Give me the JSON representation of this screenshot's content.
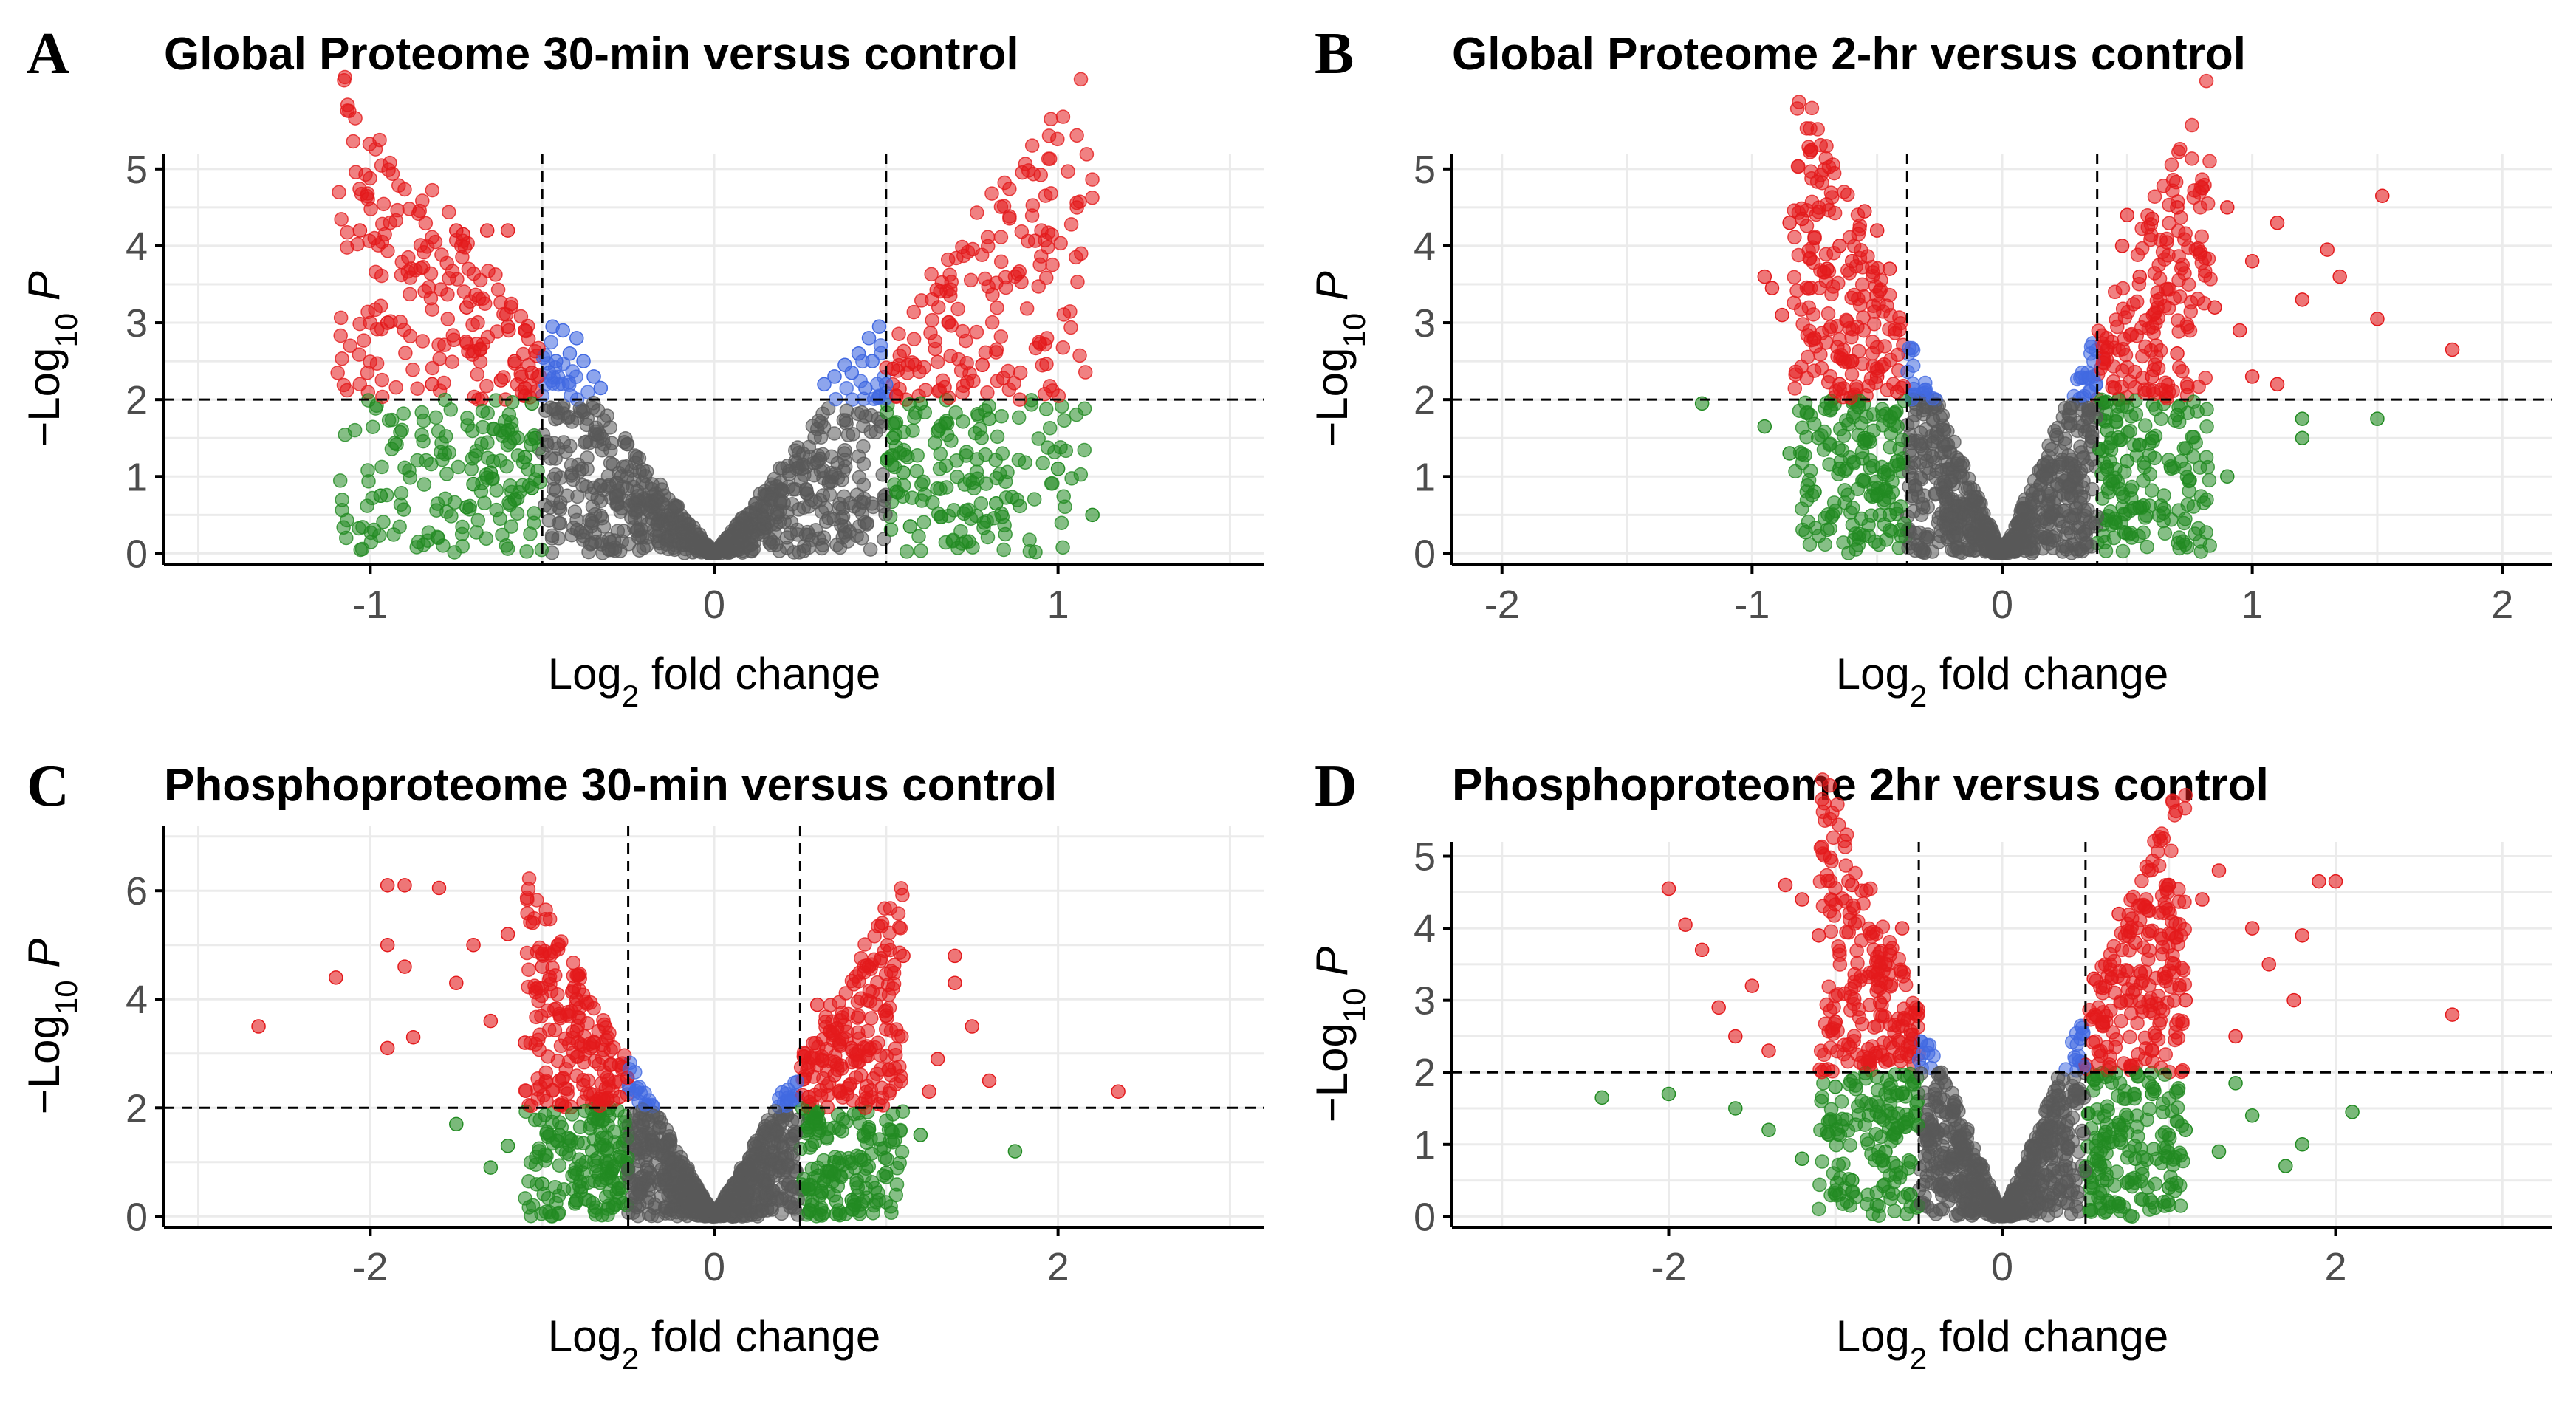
{
  "figure": {
    "colors": {
      "ns": "#595959",
      "fc_only": "#228B22",
      "p_only": "#4169E1",
      "both": "#E31A1C",
      "grid": "#EBEBEB",
      "axis": "#000000",
      "tick_text": "#4D4D4D"
    }
  },
  "chart_data": [
    {
      "id": "A",
      "letter": "A",
      "type": "scatter",
      "title": "Global Proteome 30-min versus control",
      "xlabel": "Log2 fold change",
      "ylabel": "−Log10 P",
      "xlim": [
        -1.6,
        1.6
      ],
      "ylim": [
        -0.15,
        5.2
      ],
      "xticks": [
        -1,
        0,
        1
      ],
      "xtick_labels": [
        "-1",
        "0",
        "1"
      ],
      "yticks": [
        0,
        1,
        2,
        3,
        4,
        5
      ],
      "ytick_labels": [
        "0",
        "1",
        "2",
        "3",
        "4",
        "5"
      ],
      "fc_cutoff": 0.5,
      "p_cutoff": 2,
      "points": [
        [
          -1.03,
          4.2
        ],
        [
          -0.75,
          4.2
        ],
        [
          -0.73,
          4.15
        ],
        [
          -0.66,
          4.2
        ],
        [
          -0.6,
          4.2
        ],
        [
          -0.95,
          3.0
        ],
        [
          -0.72,
          3.2
        ],
        [
          -0.6,
          2.95
        ],
        [
          -0.55,
          2.9
        ],
        [
          -0.68,
          2.65
        ],
        [
          -0.58,
          2.5
        ],
        [
          -0.53,
          2.35
        ],
        [
          -0.82,
          2.2
        ],
        [
          -0.62,
          2.25
        ],
        [
          -0.55,
          2.15
        ],
        [
          0.78,
          2.45
        ],
        [
          0.52,
          2.4
        ],
        [
          0.5,
          2.2
        ],
        [
          0.53,
          2.05
        ],
        [
          -0.47,
          2.95
        ],
        [
          -0.44,
          2.9
        ],
        [
          -0.42,
          2.6
        ],
        [
          -0.38,
          2.5
        ],
        [
          -0.35,
          2.3
        ],
        [
          -0.46,
          2.5
        ],
        [
          -0.4,
          2.8
        ],
        [
          -0.33,
          2.15
        ],
        [
          -0.48,
          2.35
        ],
        [
          0.48,
          2.95
        ],
        [
          0.45,
          2.8
        ],
        [
          0.42,
          2.6
        ],
        [
          0.38,
          2.45
        ],
        [
          0.35,
          2.3
        ],
        [
          0.32,
          2.2
        ],
        [
          0.46,
          2.5
        ],
        [
          0.4,
          2.35
        ],
        [
          0.44,
          2.15
        ],
        [
          -0.97,
          0.75
        ],
        [
          -0.7,
          0.9
        ],
        [
          -0.65,
          1.05
        ],
        [
          -0.72,
          0.6
        ],
        [
          -0.53,
          0.85
        ],
        [
          -0.58,
          0.7
        ],
        [
          -0.55,
          1.25
        ],
        [
          -0.52,
          1.5
        ],
        [
          -0.6,
          1.6
        ],
        [
          -0.53,
          1.95
        ],
        [
          1.1,
          0.5
        ],
        [
          1.0,
          1.1
        ],
        [
          0.82,
          0.65
        ],
        [
          0.8,
          1.75
        ],
        [
          0.6,
          1.95
        ],
        [
          0.55,
          1.05
        ],
        [
          0.57,
          0.35
        ],
        [
          0.52,
          1.5
        ],
        [
          0.53,
          0.8
        ]
      ]
    },
    {
      "id": "B",
      "letter": "B",
      "type": "scatter",
      "title": "Global Proteome 2-hr versus control",
      "xlabel": "Log2 fold change",
      "ylabel": "−Log10 P",
      "xlim": [
        -2.2,
        2.2
      ],
      "ylim": [
        -0.15,
        5.2
      ],
      "xticks": [
        -2,
        -1,
        0,
        1,
        2
      ],
      "xtick_labels": [
        "-2",
        "-1",
        "0",
        "1",
        "2"
      ],
      "yticks": [
        0,
        1,
        2,
        3,
        4,
        5
      ],
      "ytick_labels": [
        "0",
        "1",
        "2",
        "3",
        "4",
        "5"
      ],
      "fc_cutoff": 0.38,
      "p_cutoff": 2,
      "points": [
        [
          -0.85,
          4.3
        ],
        [
          -0.8,
          4.35
        ],
        [
          -0.75,
          4.1
        ],
        [
          -0.65,
          4.0
        ],
        [
          -0.55,
          4.45
        ],
        [
          -0.5,
          4.2
        ],
        [
          -0.95,
          3.6
        ],
        [
          -0.92,
          3.45
        ],
        [
          -0.7,
          3.7
        ],
        [
          -0.6,
          3.8
        ],
        [
          -0.45,
          3.7
        ],
        [
          -0.88,
          3.1
        ],
        [
          -0.75,
          2.8
        ],
        [
          -0.6,
          2.5
        ],
        [
          -0.5,
          2.3
        ],
        [
          -0.42,
          2.1
        ],
        [
          -0.65,
          2.2
        ],
        [
          1.52,
          4.65
        ],
        [
          1.3,
          3.95
        ],
        [
          1.35,
          3.6
        ],
        [
          1.2,
          3.3
        ],
        [
          1.5,
          3.05
        ],
        [
          1.8,
          2.65
        ],
        [
          1.1,
          4.3
        ],
        [
          1.0,
          3.8
        ],
        [
          0.9,
          4.5
        ],
        [
          0.8,
          4.75
        ],
        [
          0.7,
          4.5
        ],
        [
          0.6,
          4.35
        ],
        [
          0.5,
          4.4
        ],
        [
          0.48,
          4.0
        ],
        [
          0.55,
          3.6
        ],
        [
          0.85,
          3.2
        ],
        [
          0.95,
          2.9
        ],
        [
          1.0,
          2.3
        ],
        [
          1.1,
          2.2
        ],
        [
          0.7,
          2.6
        ],
        [
          0.6,
          2.3
        ],
        [
          0.45,
          2.15
        ],
        [
          -1.2,
          1.95
        ],
        [
          -0.95,
          1.65
        ],
        [
          -0.85,
          1.3
        ],
        [
          -0.75,
          0.8
        ],
        [
          -0.65,
          1.1
        ],
        [
          -0.55,
          1.5
        ],
        [
          -0.5,
          0.75
        ],
        [
          -0.45,
          0.5
        ],
        [
          -0.42,
          1.2
        ],
        [
          1.5,
          1.75
        ],
        [
          1.2,
          1.75
        ],
        [
          1.2,
          1.5
        ],
        [
          0.9,
          1.0
        ],
        [
          0.75,
          0.95
        ],
        [
          0.7,
          1.8
        ],
        [
          0.6,
          1.5
        ],
        [
          0.55,
          0.6
        ],
        [
          0.5,
          1.2
        ],
        [
          0.45,
          0.45
        ],
        [
          0.42,
          1.6
        ]
      ]
    },
    {
      "id": "C",
      "letter": "C",
      "type": "scatter",
      "title": "Phosphoproteome 30-min versus control",
      "xlabel": "Log2 fold change",
      "ylabel": "−Log10 P",
      "xlim": [
        -3.2,
        3.2
      ],
      "ylim": [
        -0.2,
        7.2
      ],
      "xticks": [
        -2,
        0,
        2
      ],
      "xtick_labels": [
        "-2",
        "0",
        "2"
      ],
      "yticks": [
        0,
        2,
        4,
        6
      ],
      "ytick_labels": [
        "0",
        "2",
        "4",
        "6"
      ],
      "fc_cutoff": 0.5,
      "p_cutoff": 2,
      "points": [
        [
          -1.9,
          6.1
        ],
        [
          -1.8,
          6.1
        ],
        [
          -1.6,
          6.05
        ],
        [
          -2.65,
          3.5
        ],
        [
          -2.2,
          4.4
        ],
        [
          -1.9,
          5.0
        ],
        [
          -1.8,
          4.6
        ],
        [
          -1.9,
          3.1
        ],
        [
          -1.75,
          3.3
        ],
        [
          -1.5,
          4.3
        ],
        [
          -1.4,
          5.0
        ],
        [
          -1.2,
          5.2
        ],
        [
          -1.3,
          3.6
        ],
        [
          -1.1,
          3.2
        ],
        [
          -1.0,
          4.6
        ],
        [
          -0.9,
          2.5
        ],
        [
          -0.8,
          4.0
        ],
        [
          -0.7,
          3.2
        ],
        [
          -0.6,
          2.8
        ],
        [
          -0.55,
          2.2
        ],
        [
          2.35,
          2.3
        ],
        [
          1.4,
          4.8
        ],
        [
          1.1,
          4.8
        ],
        [
          1.4,
          4.3
        ],
        [
          1.5,
          3.5
        ],
        [
          1.3,
          2.9
        ],
        [
          1.25,
          2.3
        ],
        [
          1.0,
          3.7
        ],
        [
          0.9,
          4.6
        ],
        [
          0.8,
          3.1
        ],
        [
          0.7,
          2.6
        ],
        [
          0.6,
          3.9
        ],
        [
          0.55,
          2.2
        ],
        [
          1.6,
          2.5
        ],
        [
          -1.5,
          1.7
        ],
        [
          -1.3,
          0.9
        ],
        [
          -1.2,
          1.3
        ],
        [
          -1.0,
          0.6
        ],
        [
          -0.9,
          1.5
        ],
        [
          -0.8,
          0.3
        ],
        [
          -0.7,
          1.8
        ],
        [
          -0.6,
          0.8
        ],
        [
          -0.55,
          1.1
        ],
        [
          1.75,
          1.2
        ],
        [
          1.2,
          1.5
        ],
        [
          1.0,
          0.8
        ],
        [
          0.9,
          1.6
        ],
        [
          0.8,
          0.3
        ],
        [
          0.7,
          1.0
        ],
        [
          0.6,
          1.9
        ],
        [
          0.55,
          0.5
        ]
      ]
    },
    {
      "id": "D",
      "letter": "D",
      "type": "scatter",
      "title": "Phosphoproteome 2hr versus control",
      "xlabel": "Log2 fold change",
      "ylabel": "−Log10 P",
      "xlim": [
        -3.3,
        3.3
      ],
      "ylim": [
        -0.15,
        5.2
      ],
      "xticks": [
        -2,
        0,
        2
      ],
      "xtick_labels": [
        "-2",
        "0",
        "2"
      ],
      "yticks": [
        0,
        1,
        2,
        3,
        4,
        5
      ],
      "ytick_labels": [
        "0",
        "1",
        "2",
        "3",
        "4",
        "5"
      ],
      "fc_cutoff": 0.5,
      "p_cutoff": 2,
      "points": [
        [
          -2.0,
          4.55
        ],
        [
          -1.9,
          4.05
        ],
        [
          -1.8,
          3.7
        ],
        [
          -1.7,
          2.9
        ],
        [
          -1.6,
          2.5
        ],
        [
          -1.5,
          3.2
        ],
        [
          -1.4,
          2.3
        ],
        [
          -1.3,
          4.6
        ],
        [
          -1.2,
          4.4
        ],
        [
          -1.1,
          3.9
        ],
        [
          -1.0,
          2.7
        ],
        [
          -0.9,
          4.6
        ],
        [
          -0.8,
          2.2
        ],
        [
          -0.7,
          3.5
        ],
        [
          -0.6,
          4.0
        ],
        [
          -0.55,
          2.4
        ],
        [
          2.7,
          2.8
        ],
        [
          2.0,
          4.65
        ],
        [
          1.9,
          4.65
        ],
        [
          1.8,
          3.9
        ],
        [
          1.75,
          3.0
        ],
        [
          1.6,
          3.5
        ],
        [
          1.5,
          4.0
        ],
        [
          1.4,
          2.5
        ],
        [
          1.3,
          4.8
        ],
        [
          1.2,
          4.4
        ],
        [
          1.1,
          3.0
        ],
        [
          1.0,
          4.6
        ],
        [
          0.9,
          2.3
        ],
        [
          0.8,
          3.8
        ],
        [
          0.7,
          4.2
        ],
        [
          0.6,
          2.7
        ],
        [
          0.55,
          3.3
        ],
        [
          -2.4,
          1.65
        ],
        [
          -2.0,
          1.7
        ],
        [
          -1.6,
          1.5
        ],
        [
          -1.4,
          1.2
        ],
        [
          -1.2,
          0.8
        ],
        [
          -1.0,
          1.8
        ],
        [
          -0.9,
          0.5
        ],
        [
          -0.8,
          1.4
        ],
        [
          -0.7,
          0.9
        ],
        [
          -0.6,
          1.7
        ],
        [
          -0.55,
          0.3
        ],
        [
          2.1,
          1.45
        ],
        [
          1.8,
          1.0
        ],
        [
          1.7,
          0.7
        ],
        [
          1.5,
          1.4
        ],
        [
          1.4,
          1.85
        ],
        [
          1.3,
          0.9
        ],
        [
          1.1,
          1.2
        ],
        [
          1.0,
          0.4
        ],
        [
          0.9,
          1.7
        ],
        [
          0.8,
          0.8
        ],
        [
          0.7,
          1.3
        ],
        [
          0.6,
          0.5
        ],
        [
          0.55,
          1.9
        ]
      ]
    }
  ]
}
